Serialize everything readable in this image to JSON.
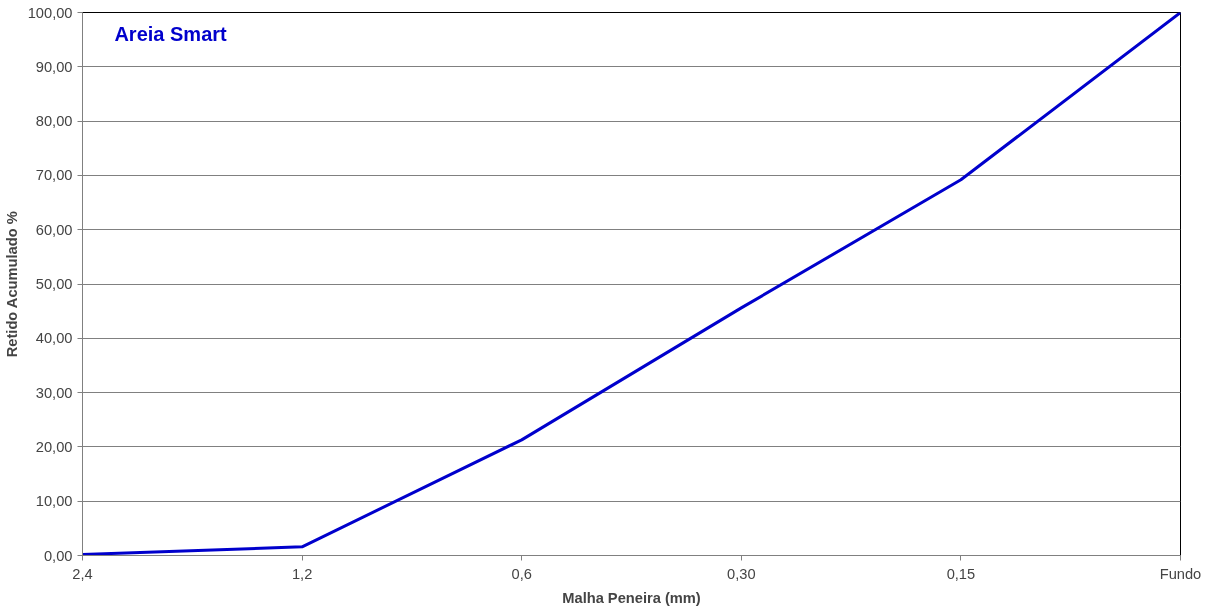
{
  "chart_data": {
    "type": "line",
    "xlabel": "Malha Peneira (mm)",
    "ylabel": "Retido Acumulado %",
    "categories": [
      "2,4",
      "1,2",
      "0,6",
      "0,30",
      "0,15",
      "Fundo"
    ],
    "series": [
      {
        "name": "Areia Smart",
        "color": "#0000cc",
        "values": [
          0.2,
          1.6,
          21.3,
          45.6,
          69.2,
          100
        ]
      }
    ],
    "ylim": [
      0,
      100
    ],
    "yticks": [
      {
        "value": 0,
        "label": "0,00"
      },
      {
        "value": 10,
        "label": "10,00"
      },
      {
        "value": 20,
        "label": "20,00"
      },
      {
        "value": 30,
        "label": "30,00"
      },
      {
        "value": 40,
        "label": "40,00"
      },
      {
        "value": 50,
        "label": "50,00"
      },
      {
        "value": 60,
        "label": "60,00"
      },
      {
        "value": 70,
        "label": "70,00"
      },
      {
        "value": 80,
        "label": "80,00"
      },
      {
        "value": 90,
        "label": "90,00"
      },
      {
        "value": 100,
        "label": "100,00"
      }
    ],
    "grid": "y",
    "legend": "top left",
    "marker": "none",
    "line_style": "solid"
  }
}
